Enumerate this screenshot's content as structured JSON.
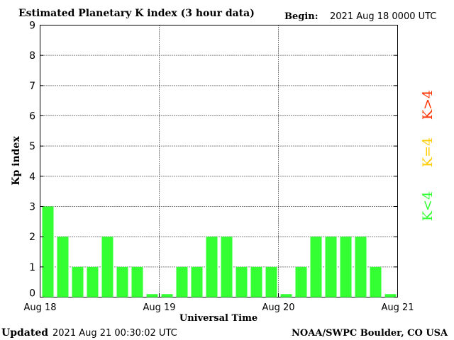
{
  "header": {
    "title": "Estimated Planetary K index (3 hour data)",
    "begin_label": "Begin:",
    "begin_value": "2021 Aug 18 0000 UTC"
  },
  "footer": {
    "updated_label": "Updated",
    "updated_value": "2021 Aug 21 00:30:02 UTC",
    "source": "NOAA/SWPC Boulder, CO USA"
  },
  "legend": {
    "items": [
      {
        "label": "K>4",
        "color": "#ff3300"
      },
      {
        "label": "K=4",
        "color": "#ffcc00"
      },
      {
        "label": "K<4",
        "color": "#33ff33"
      }
    ],
    "placement": "right"
  },
  "chart_data": {
    "type": "bar",
    "title": "Estimated Planetary K index (3 hour data)",
    "xlabel": "Universal Time",
    "ylabel": "Kp index",
    "ylim": [
      0,
      9
    ],
    "yticks": [
      "0",
      "1",
      "2",
      "3",
      "4",
      "5",
      "6",
      "7",
      "8",
      "9"
    ],
    "xtick_labels": [
      "Aug 18",
      "Aug 19",
      "Aug 20",
      "Aug 21"
    ],
    "grid": true,
    "bar_color": "#33ff33",
    "values": [
      3,
      2,
      1,
      1,
      2,
      1,
      1,
      0.1,
      0.1,
      1,
      1,
      2,
      2,
      1,
      1,
      1,
      0.1,
      1,
      2,
      2,
      2,
      2,
      1,
      0.1
    ]
  }
}
